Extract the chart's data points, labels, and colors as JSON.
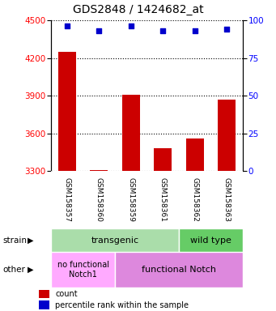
{
  "title": "GDS2848 / 1424682_at",
  "samples": [
    "GSM158357",
    "GSM158360",
    "GSM158359",
    "GSM158361",
    "GSM158362",
    "GSM158363"
  ],
  "counts": [
    4250,
    3310,
    3910,
    3480,
    3560,
    3870
  ],
  "percentiles": [
    96,
    93,
    96,
    93,
    93,
    94
  ],
  "ylim_left": [
    3300,
    4500
  ],
  "ylim_right": [
    0,
    100
  ],
  "yticks_left": [
    3300,
    3600,
    3900,
    4200,
    4500
  ],
  "yticks_right": [
    0,
    25,
    50,
    75,
    100
  ],
  "bar_color": "#cc0000",
  "dot_color": "#0000cc",
  "strain_transgenic_cols": 4,
  "strain_wildtype_cols": 2,
  "strain_transgenic_label": "transgenic",
  "strain_wildtype_label": "wild type",
  "other_nofunc_cols": 2,
  "other_func_cols": 4,
  "other_nofunc_label": "no functional\nNotch1",
  "other_func_label": "functional Notch",
  "color_transgenic": "#aaddaa",
  "color_wildtype": "#66cc66",
  "color_nofunc": "#ffaaff",
  "color_func": "#dd88dd",
  "legend_count_color": "#cc0000",
  "legend_pct_color": "#0000cc",
  "legend_count_label": "count",
  "legend_pct_label": "percentile rank within the sample",
  "background_color": "#ffffff",
  "tick_fontsize": 7.5,
  "label_fontsize": 7,
  "strain_fontsize": 8,
  "title_fontsize": 10
}
